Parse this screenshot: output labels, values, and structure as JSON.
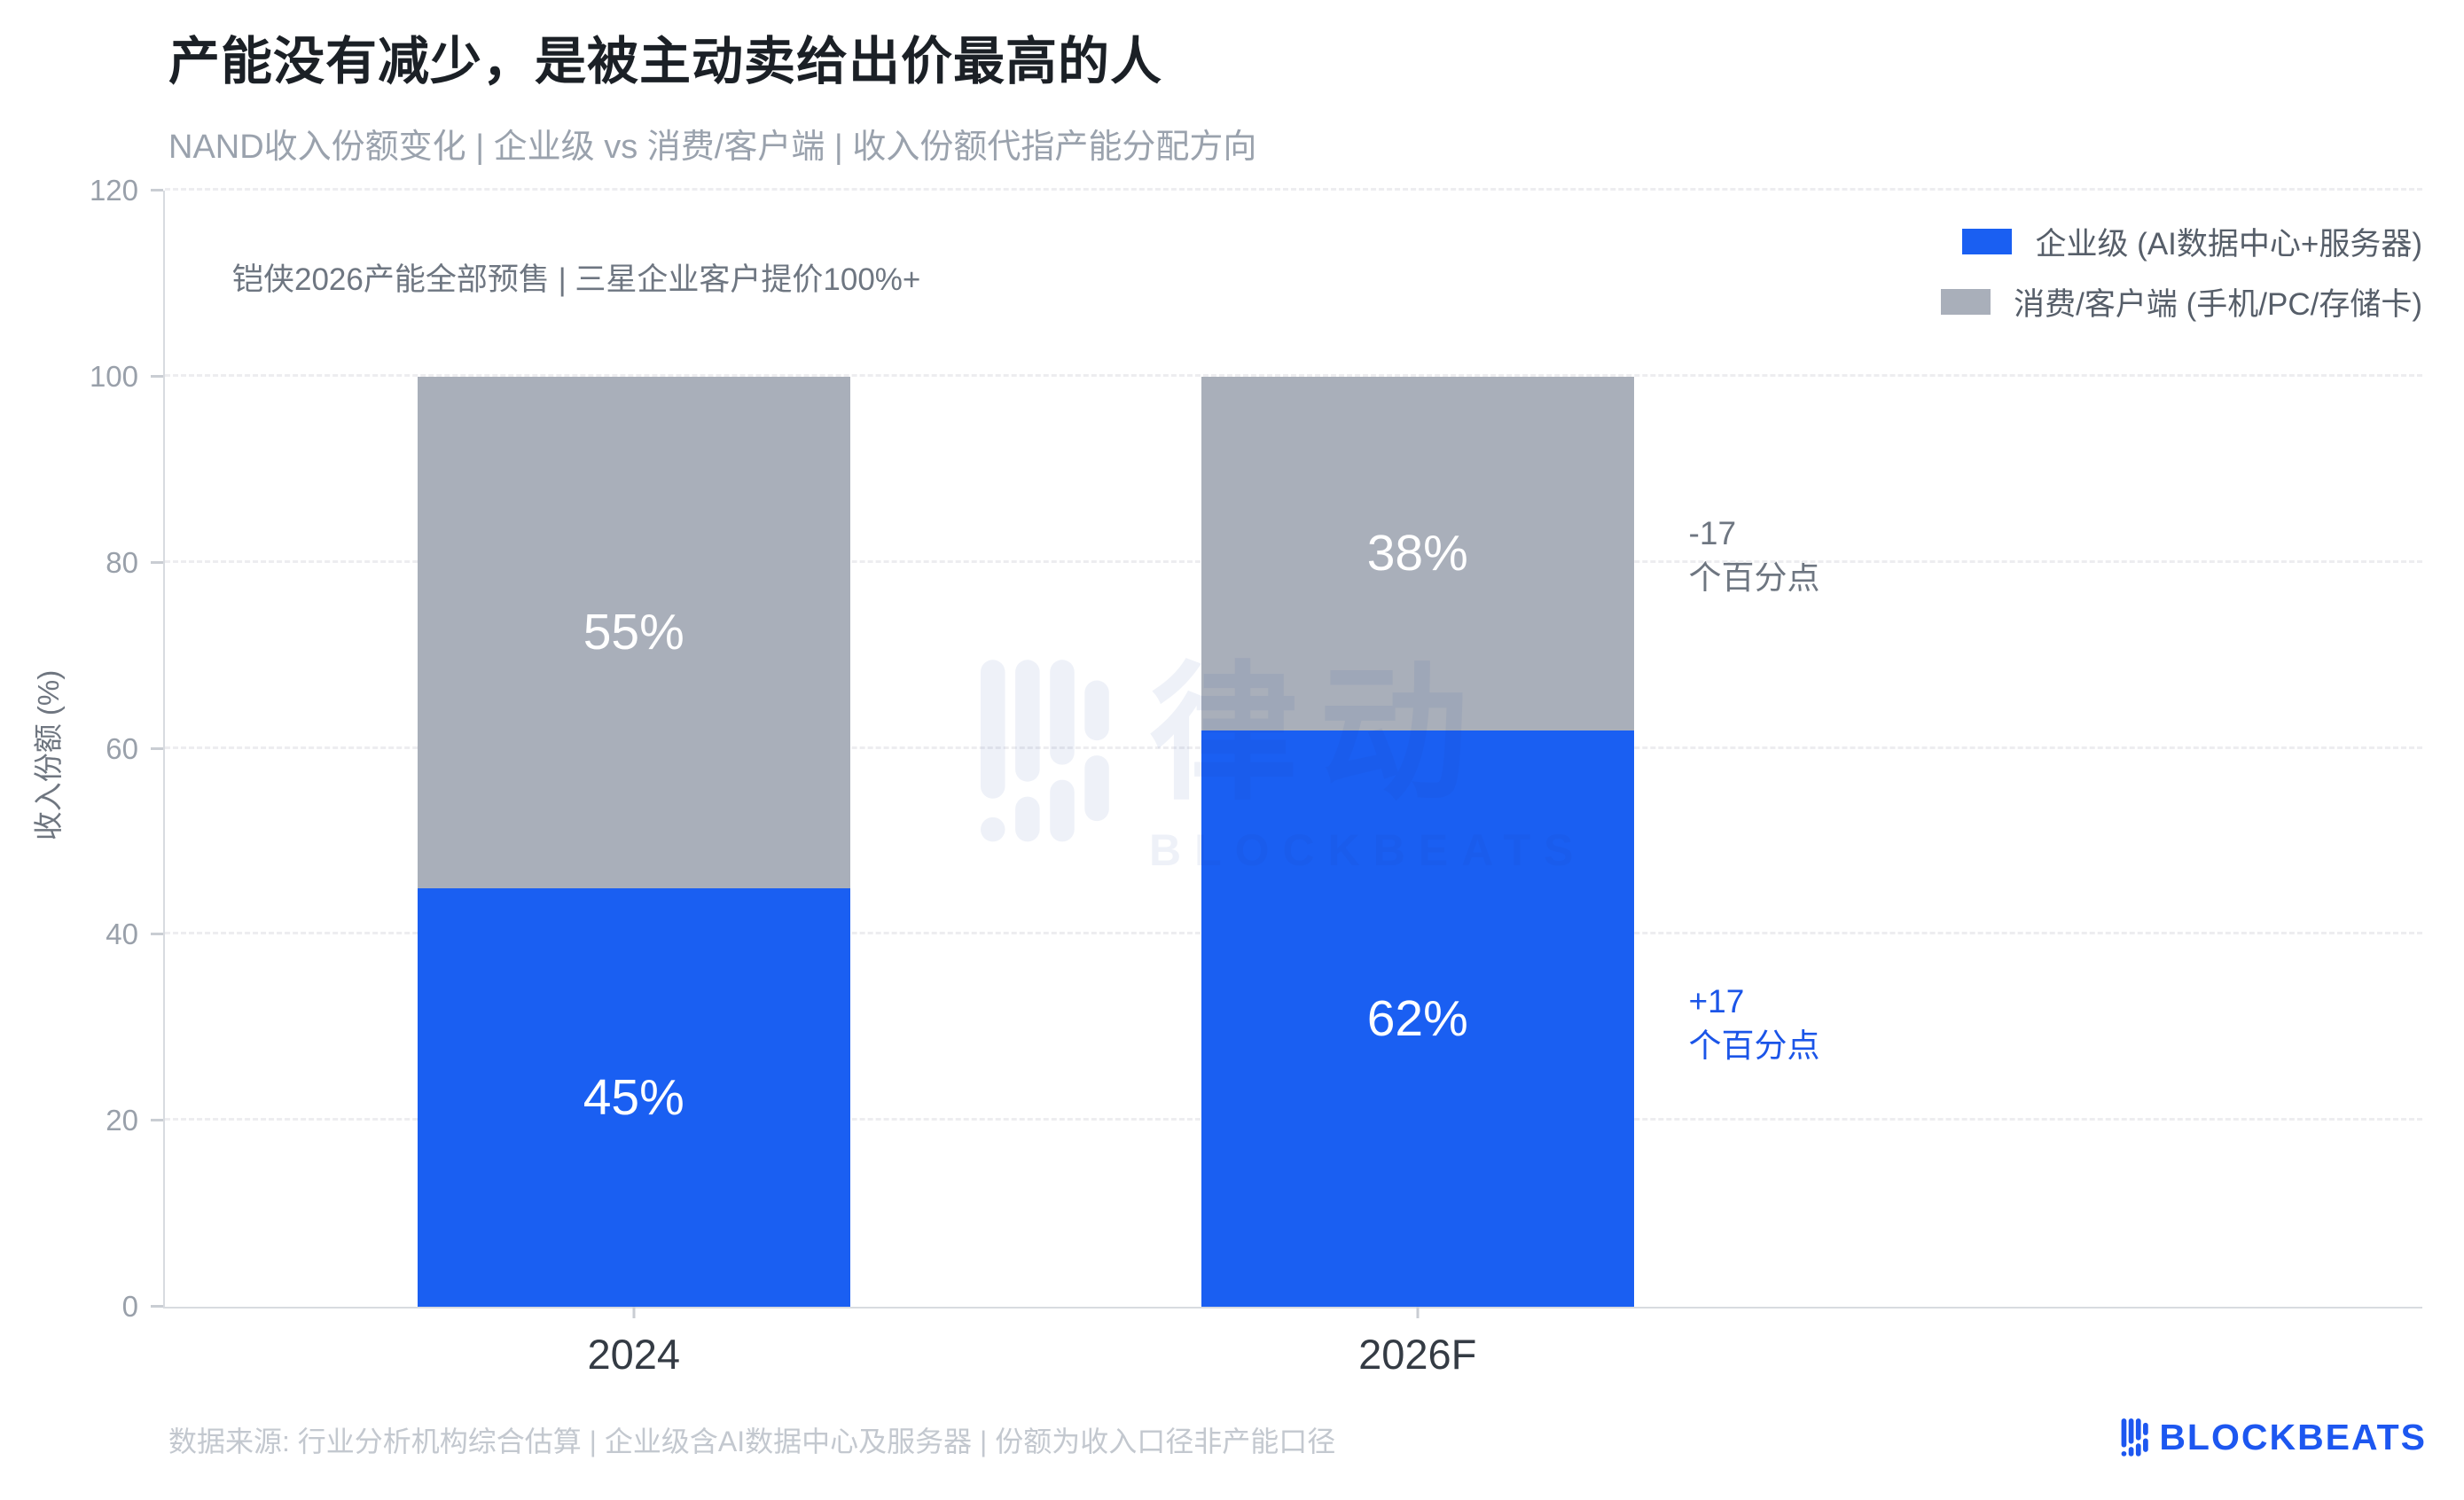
{
  "header": {
    "title": "产能没有减少，是被主动卖给出价最高的人",
    "subtitle": "NAND收入份额变化 | 企业级 vs 消费/客户端 | 收入份额代指产能分配方向"
  },
  "chart_data": {
    "type": "bar",
    "stacked": true,
    "categories": [
      "2024",
      "2026F"
    ],
    "series": [
      {
        "name": "企业级 (AI数据中心+服务器)",
        "color": "#1a5ff2",
        "values": [
          45,
          62
        ]
      },
      {
        "name": "消费/客户端 (手机/PC/存储卡)",
        "color": "#a9afba",
        "values": [
          55,
          38
        ]
      }
    ],
    "title": "产能没有减少，是被主动卖给出价最高的人",
    "subtitle": "NAND收入份额变化 | 企业级 vs 消费/客户端 | 收入份额代指产能分配方向",
    "xlabel": "",
    "ylabel": "收入份额 (%)",
    "ylim": [
      0,
      120
    ],
    "yticks": [
      0,
      20,
      40,
      60,
      80,
      100,
      120
    ],
    "grid": "horizontal-dashed",
    "legend_position": "top-right",
    "bar_label_suffix": "%",
    "callout": "铠侠2026产能全部预售 | 三星企业客户提价100%+",
    "diff_annotations": [
      {
        "line1": "-17",
        "line2": "个百分点",
        "color": "#6e7681",
        "refers_to": "消费/客户端 2026F"
      },
      {
        "line1": "+17",
        "line2": "个百分点",
        "color": "#1b55e8",
        "refers_to": "企业级 2026F"
      }
    ]
  },
  "watermark": {
    "cn": "律动",
    "en": "BLOCKBEATS"
  },
  "footer": {
    "source": "数据来源: 行业分析机构综合估算 | 企业级含AI数据中心及服务器 | 份额为收入口径非产能口径"
  },
  "brand": {
    "name": "BLOCKBEATS",
    "color": "#1d57f0"
  },
  "palette": {
    "enterprise_blue": "#1a5ff2",
    "consumer_gray": "#a9afba",
    "axis_text": "#99a0aa",
    "grid_line": "#ededf0"
  }
}
